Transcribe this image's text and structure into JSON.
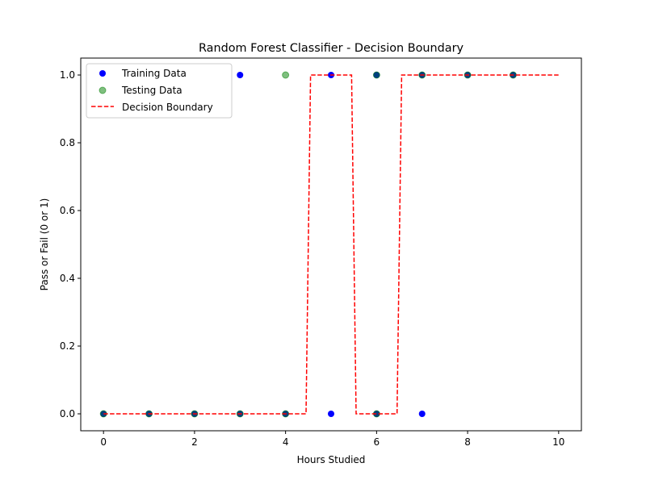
{
  "chart_data": {
    "type": "scatter",
    "title": "Random Forest Classifier - Decision Boundary",
    "xlabel": "Hours Studied",
    "ylabel": "Pass or Fail (0 or 1)",
    "xlim": [
      -0.5,
      10.5
    ],
    "ylim": [
      -0.05,
      1.05
    ],
    "xticks": [
      0,
      2,
      4,
      6,
      8,
      10
    ],
    "yticks": [
      0.0,
      0.2,
      0.4,
      0.6,
      0.8,
      1.0
    ],
    "xtick_labels": [
      "0",
      "2",
      "4",
      "6",
      "8",
      "10"
    ],
    "ytick_labels": [
      "0.0",
      "0.2",
      "0.4",
      "0.6",
      "0.8",
      "1.0"
    ],
    "grid": false,
    "legend_position": "upper-left",
    "series": [
      {
        "name": "Training Data",
        "kind": "scatter",
        "color": "#0000ff",
        "points": [
          [
            0,
            0
          ],
          [
            1,
            0
          ],
          [
            2,
            0
          ],
          [
            3,
            0
          ],
          [
            4,
            0
          ],
          [
            5,
            0
          ],
          [
            6,
            0
          ],
          [
            7,
            0
          ],
          [
            3,
            1
          ],
          [
            5,
            1
          ],
          [
            6,
            1
          ],
          [
            7,
            1
          ],
          [
            8,
            1
          ],
          [
            9,
            1
          ]
        ]
      },
      {
        "name": "Testing Data",
        "kind": "scatter",
        "color": "#008000",
        "opacity": 0.5,
        "points": [
          [
            0,
            0
          ],
          [
            1,
            0
          ],
          [
            2,
            0
          ],
          [
            3,
            0
          ],
          [
            4,
            0
          ],
          [
            6,
            0
          ],
          [
            4,
            1
          ],
          [
            6,
            1
          ],
          [
            7,
            1
          ],
          [
            8,
            1
          ],
          [
            9,
            1
          ]
        ]
      },
      {
        "name": "Decision Boundary",
        "kind": "line",
        "style": "dashed",
        "color": "#ff0000",
        "points": [
          [
            0,
            0
          ],
          [
            4.45,
            0
          ],
          [
            4.55,
            1
          ],
          [
            5.45,
            1
          ],
          [
            5.55,
            0
          ],
          [
            6.45,
            0
          ],
          [
            6.55,
            1
          ],
          [
            10,
            1
          ]
        ]
      }
    ]
  }
}
